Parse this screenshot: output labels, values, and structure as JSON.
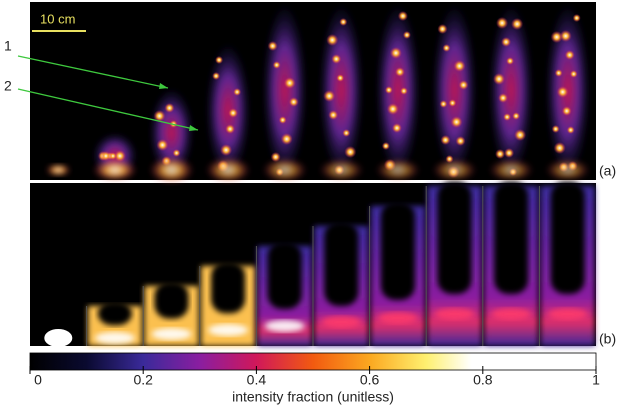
{
  "scale_bar": "10 cm",
  "annotations": [
    "1",
    "2"
  ],
  "panels": [
    {
      "label": "(a)"
    },
    {
      "label": "(b)"
    }
  ],
  "colorbar": {
    "label": "intensity fraction (unitless)",
    "lim": [
      0,
      1
    ],
    "ticks": [
      0,
      0.2,
      0.4,
      0.6,
      0.8,
      1
    ]
  }
}
